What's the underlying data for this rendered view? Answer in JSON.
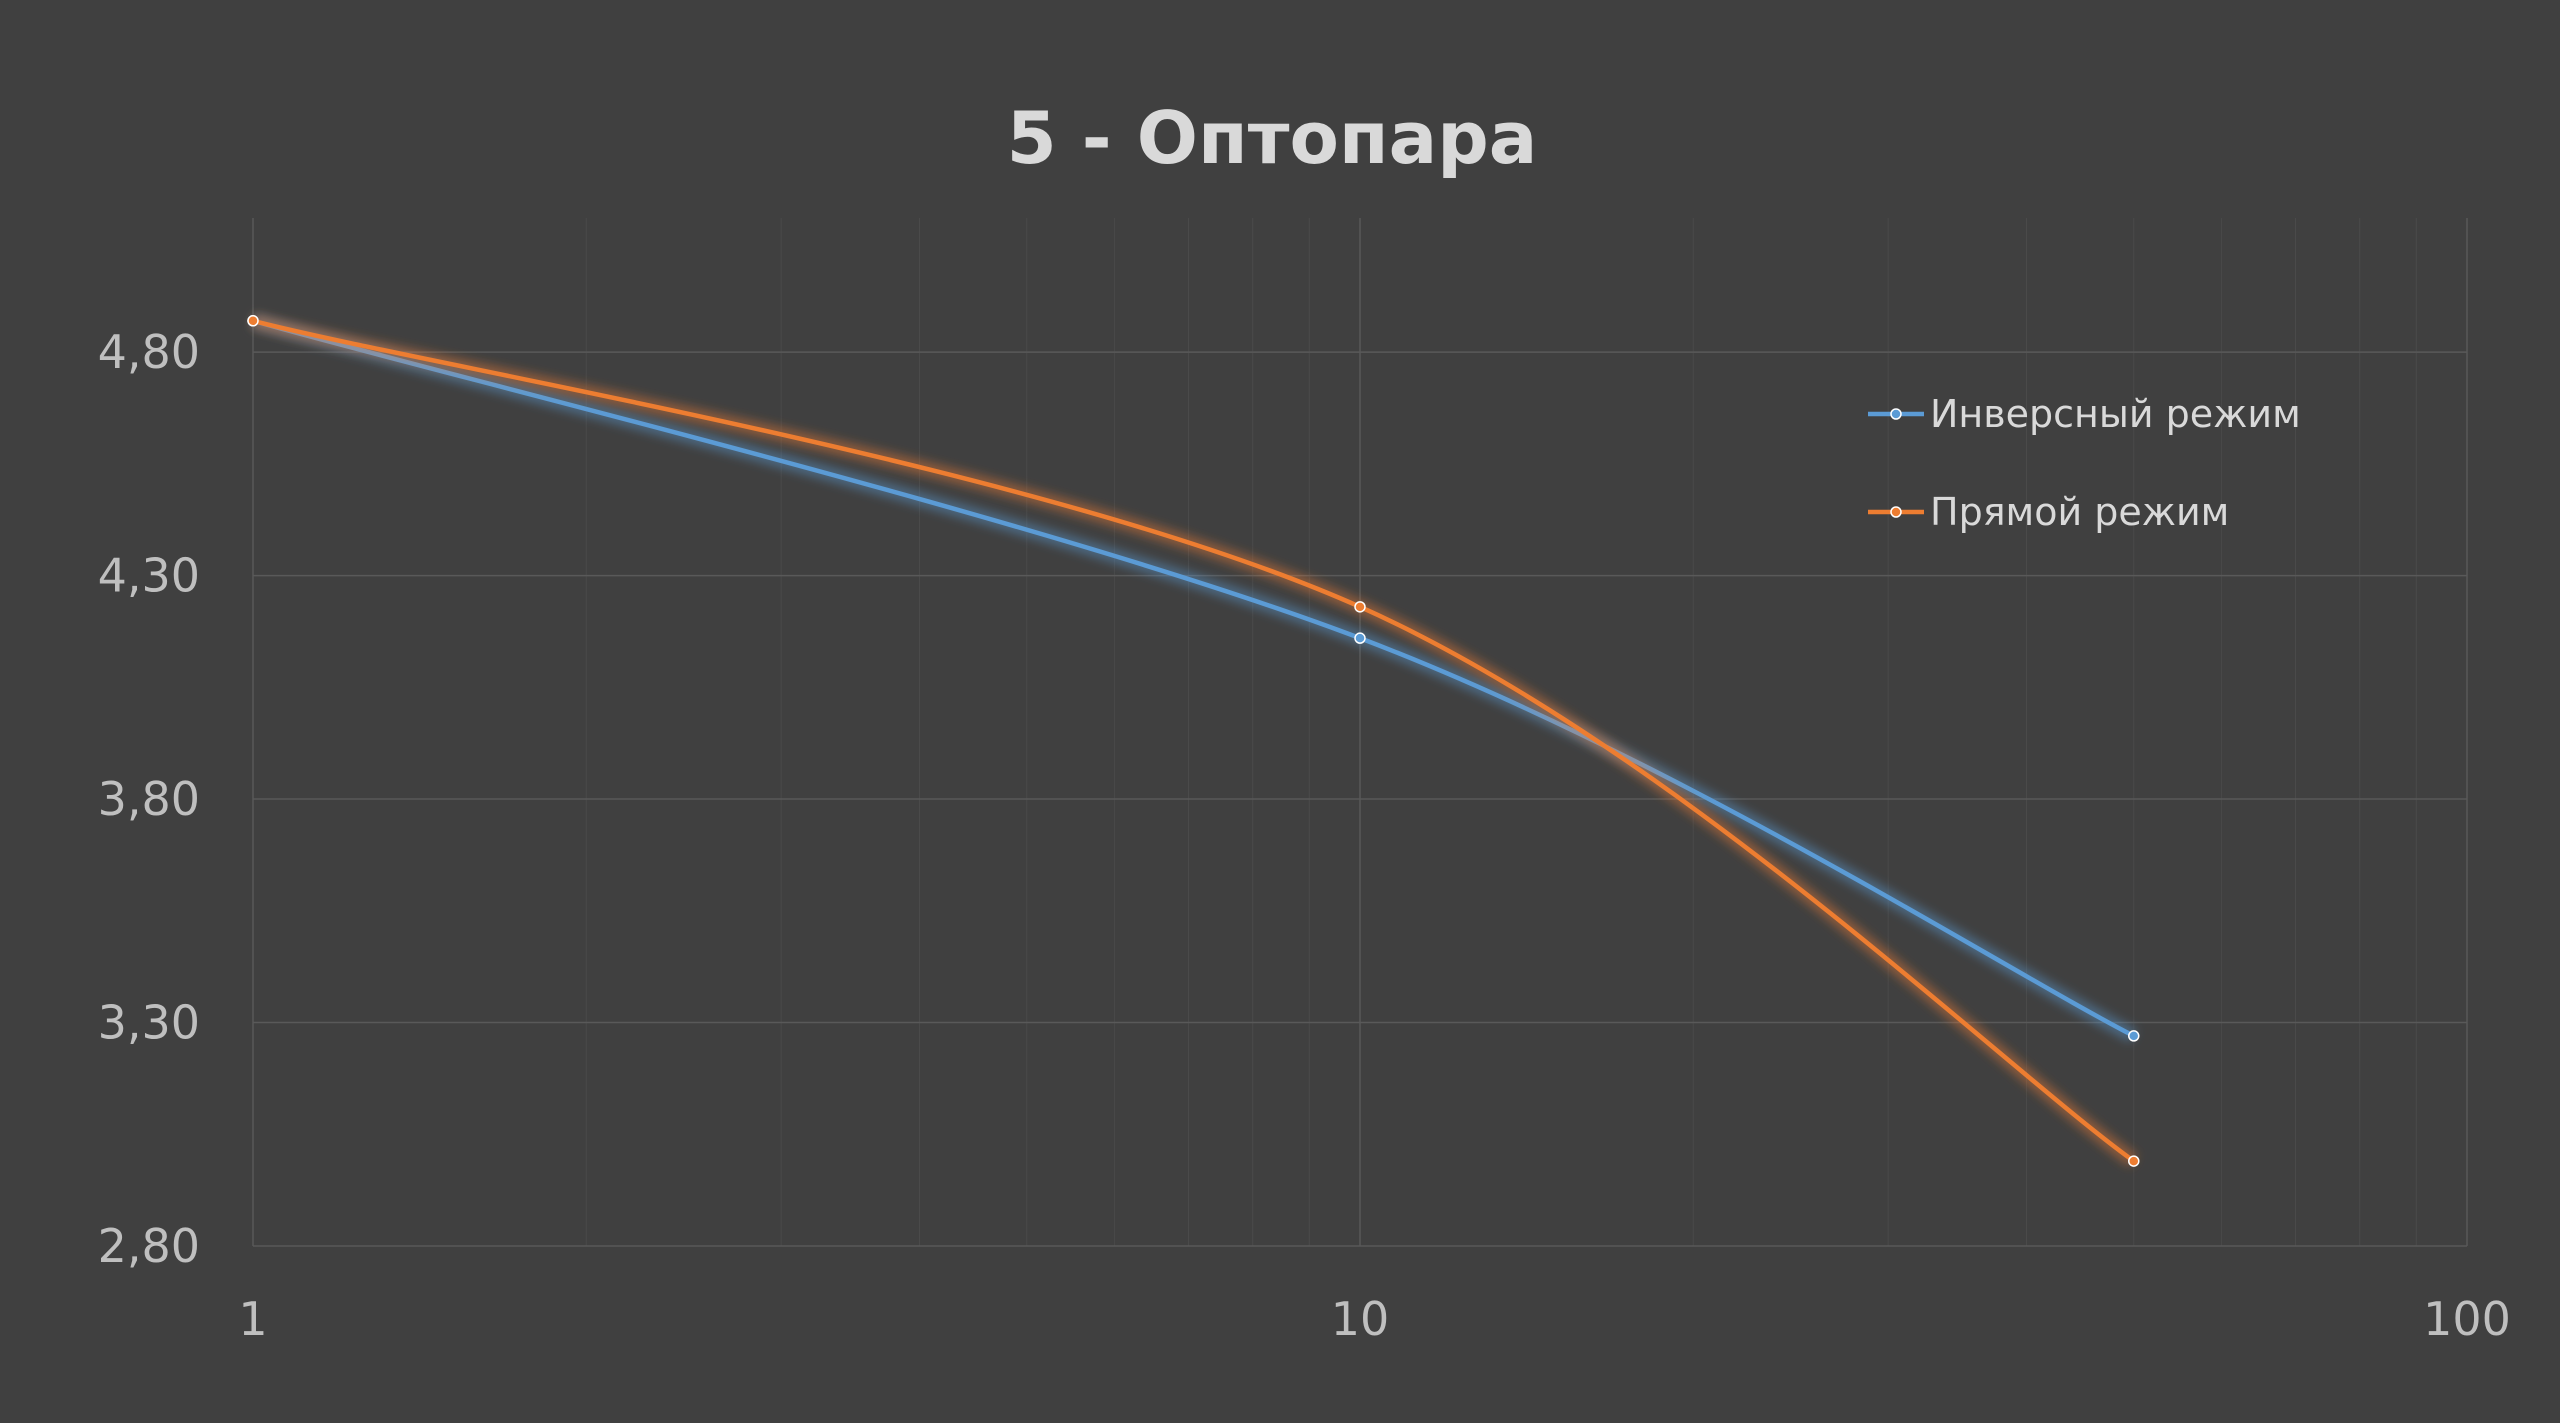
{
  "chart_data": {
    "type": "line",
    "title": "5 - Оптопара",
    "xscale": "log",
    "xlim": [
      1,
      100
    ],
    "ylim": [
      2.8,
      5.1
    ],
    "x_ticks": [
      {
        "value": 1,
        "label": "1"
      },
      {
        "value": 10,
        "label": "10"
      },
      {
        "value": 100,
        "label": "100"
      }
    ],
    "y_ticks": [
      {
        "value": 2.8,
        "label": "2,80"
      },
      {
        "value": 3.3,
        "label": "3,30"
      },
      {
        "value": 3.8,
        "label": "3,80"
      },
      {
        "value": 4.3,
        "label": "4,30"
      },
      {
        "value": 4.8,
        "label": "4,80"
      }
    ],
    "grid": true,
    "legend_position": "top-right",
    "series": [
      {
        "name": "Инверсный режим",
        "color": "#5b9bd5",
        "x": [
          1,
          10,
          50
        ],
        "values": [
          4.87,
          4.16,
          3.27
        ]
      },
      {
        "name": "Прямой режим",
        "color": "#ed7d31",
        "x": [
          1,
          10,
          50
        ],
        "values": [
          4.87,
          4.23,
          2.99
        ]
      }
    ],
    "colors": {
      "background": "#404040",
      "grid": "#595959",
      "title": "#d9d9d9",
      "tick": "#bfbfbf"
    }
  }
}
